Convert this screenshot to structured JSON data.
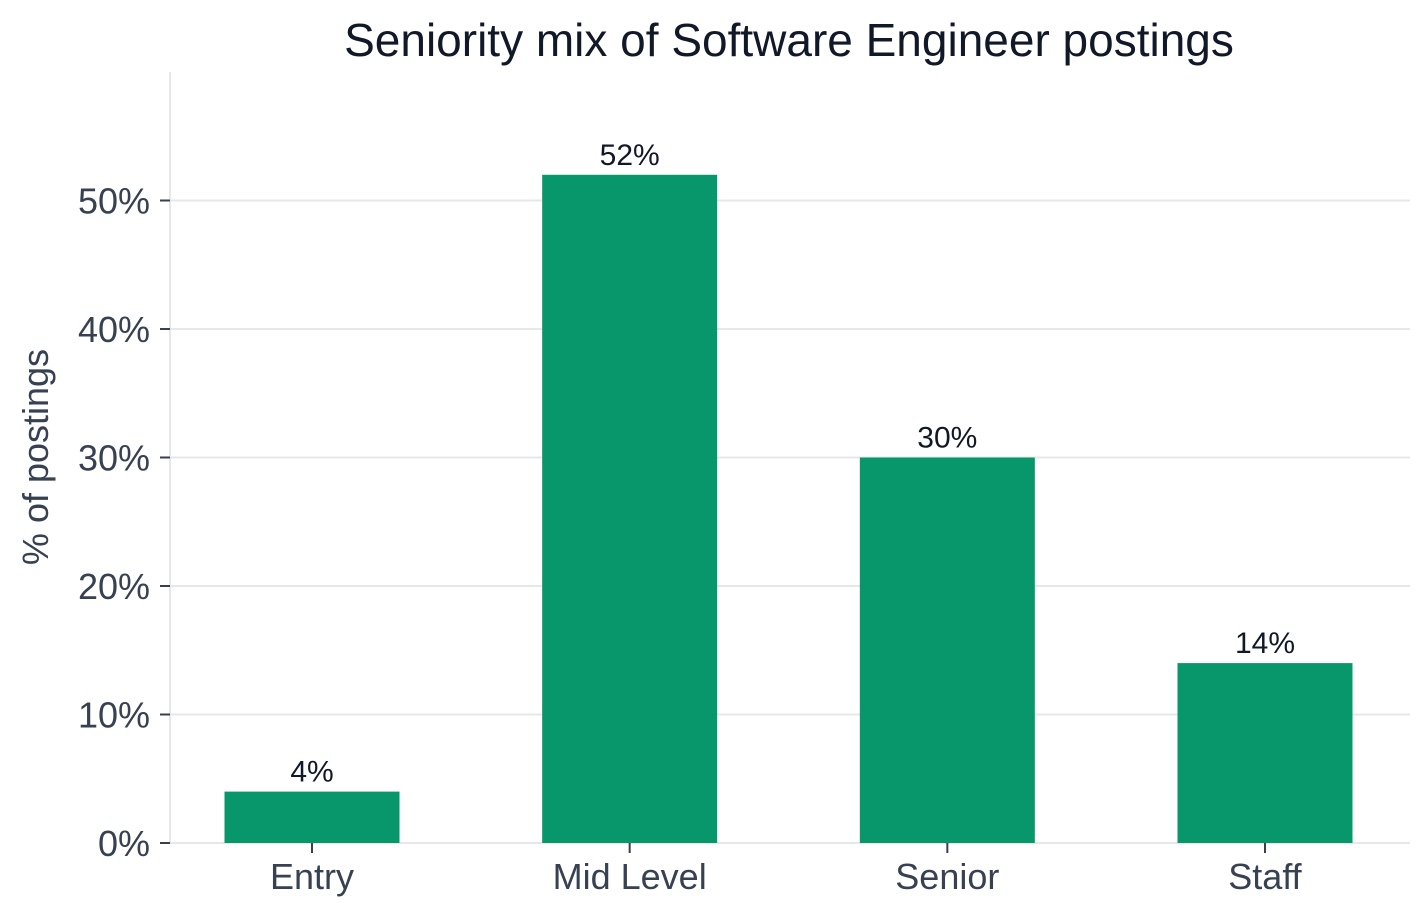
{
  "chart_data": {
    "type": "bar",
    "title": "Seniority mix of Software Engineer postings",
    "xlabel": "",
    "ylabel": "% of postings",
    "categories": [
      "Entry",
      "Mid Level",
      "Senior",
      "Staff"
    ],
    "values": [
      4,
      52,
      30,
      14
    ],
    "data_labels": [
      "4%",
      "52%",
      "30%",
      "14%"
    ],
    "ylim": [
      0,
      60
    ],
    "yticks": [
      0,
      10,
      20,
      30,
      40,
      50
    ],
    "ytick_labels": [
      "0%",
      "10%",
      "20%",
      "30%",
      "40%",
      "50%"
    ],
    "grid": "horizontal",
    "legend": "none",
    "colors": {
      "bar": "#07976A",
      "grid": "#e5e7eb",
      "axis_text": "#374151",
      "title": "#111827"
    }
  }
}
